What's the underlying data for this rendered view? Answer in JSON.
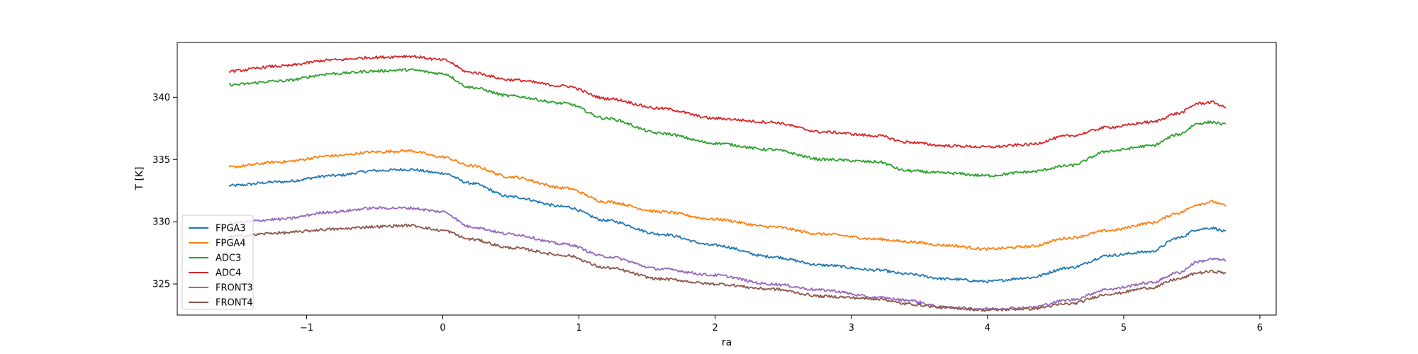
{
  "chart_data": {
    "type": "line",
    "title": "",
    "xlabel": "ra",
    "ylabel": "T [K]",
    "xlim": [
      -1.95,
      6.12
    ],
    "ylim": [
      322.5,
      344.4
    ],
    "grid": false,
    "legend_position": "bottom-left",
    "x_ticks": [
      -1,
      0,
      1,
      2,
      3,
      4,
      5,
      6
    ],
    "x_tick_labels": [
      "−1",
      "0",
      "1",
      "2",
      "3",
      "4",
      "5",
      "6"
    ],
    "y_ticks": [
      325,
      330,
      335,
      340
    ],
    "y_tick_labels": [
      "325",
      "330",
      "335",
      "340"
    ],
    "x": [
      -1.57,
      -1.2,
      -0.8,
      -0.5,
      -0.25,
      0.0,
      0.2,
      0.5,
      0.9,
      1.2,
      1.6,
      2.0,
      2.4,
      2.8,
      3.2,
      3.4,
      3.7,
      4.0,
      4.3,
      4.6,
      4.9,
      5.2,
      5.4,
      5.55,
      5.65,
      5.75
    ],
    "series": [
      {
        "name": "FPGA3",
        "color": "#1f77b4",
        "values": [
          332.9,
          333.2,
          333.7,
          334.1,
          334.2,
          333.9,
          333.1,
          332.0,
          331.2,
          330.1,
          329.0,
          328.1,
          327.2,
          326.5,
          326.1,
          325.8,
          325.4,
          325.2,
          325.5,
          326.3,
          327.3,
          327.6,
          328.7,
          329.4,
          329.5,
          329.2
        ]
      },
      {
        "name": "FPGA4",
        "color": "#ff7f0e",
        "values": [
          334.4,
          334.8,
          335.3,
          335.6,
          335.7,
          335.2,
          334.5,
          333.6,
          332.7,
          331.6,
          330.8,
          330.2,
          329.6,
          329.0,
          328.6,
          328.4,
          328.1,
          327.8,
          328.0,
          328.7,
          329.3,
          329.9,
          330.7,
          331.4,
          331.6,
          331.3
        ]
      },
      {
        "name": "ADC3",
        "color": "#2ca02c",
        "values": [
          341.0,
          341.3,
          341.9,
          342.1,
          342.2,
          341.9,
          340.8,
          340.1,
          339.5,
          338.3,
          337.1,
          336.3,
          335.8,
          335.0,
          334.8,
          334.1,
          333.9,
          333.7,
          334.0,
          334.5,
          335.7,
          336.1,
          337.0,
          337.9,
          338.0,
          337.8
        ]
      },
      {
        "name": "ADC4",
        "color": "#d62728",
        "values": [
          342.1,
          342.5,
          343.0,
          343.2,
          343.3,
          343.0,
          342.0,
          341.4,
          340.9,
          339.9,
          339.1,
          338.3,
          338.0,
          337.2,
          336.9,
          336.4,
          336.1,
          336.0,
          336.2,
          336.9,
          337.6,
          338.0,
          338.7,
          339.5,
          339.6,
          339.2
        ]
      },
      {
        "name": "FRONT3",
        "color": "#9467bd",
        "values": [
          329.9,
          330.2,
          330.8,
          331.1,
          331.1,
          330.8,
          329.6,
          329.0,
          328.2,
          327.2,
          326.2,
          325.7,
          325.0,
          324.5,
          323.9,
          323.7,
          323.1,
          323.0,
          323.1,
          323.7,
          324.6,
          325.1,
          325.9,
          326.8,
          327.0,
          326.9
        ]
      },
      {
        "name": "FRONT4",
        "color": "#8c564b",
        "values": [
          328.8,
          329.1,
          329.4,
          329.6,
          329.7,
          329.3,
          328.6,
          327.9,
          327.3,
          326.3,
          325.4,
          325.0,
          324.6,
          324.0,
          323.8,
          323.4,
          323.1,
          322.9,
          323.0,
          323.4,
          324.2,
          324.7,
          325.4,
          325.9,
          326.0,
          325.9
        ]
      }
    ]
  }
}
